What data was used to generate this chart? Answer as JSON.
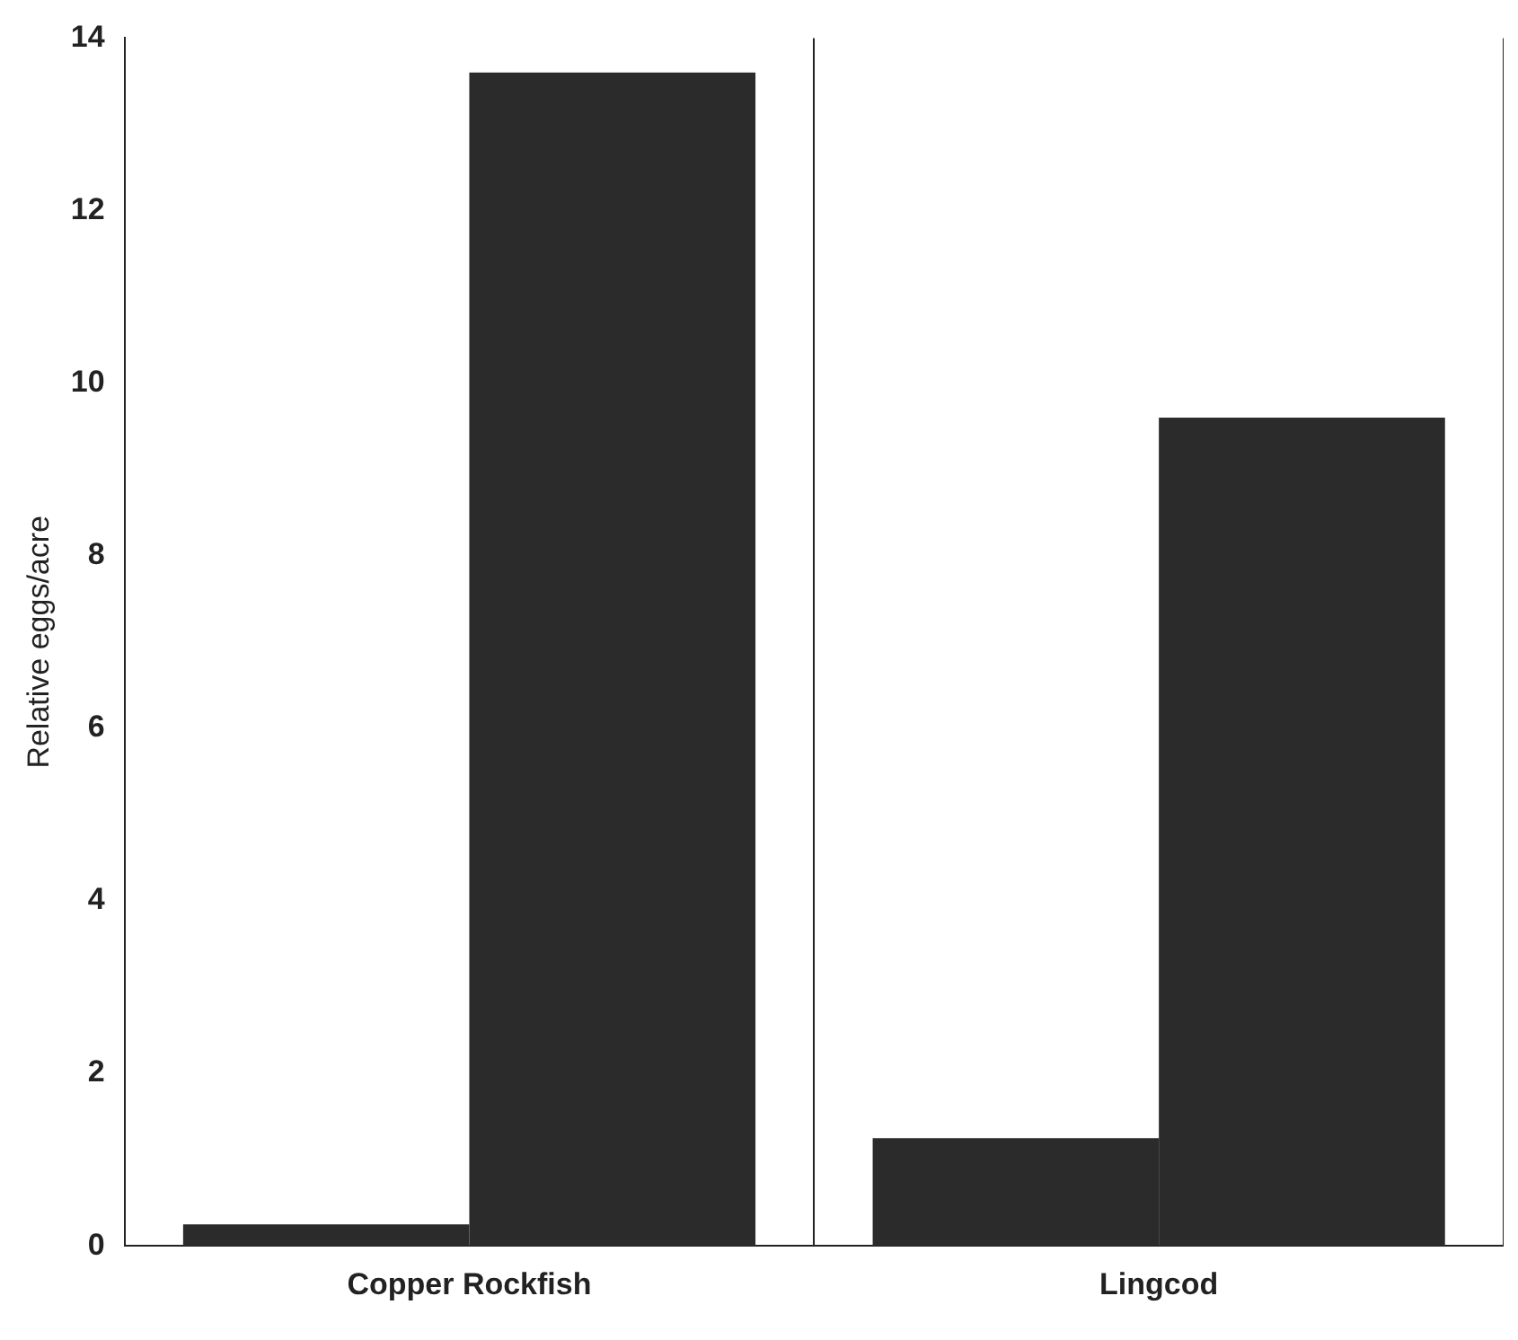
{
  "chart_data": {
    "type": "bar",
    "ylabel": "Relative eggs/acre",
    "categories": [
      "Copper Rockfish",
      "Lingcod"
    ],
    "series": [
      {
        "color": "#2b2b2b",
        "values": [
          0.25,
          1.25
        ]
      },
      {
        "color": "#2b2b2b",
        "values": [
          13.6,
          9.6
        ]
      }
    ],
    "ylim": [
      0,
      14
    ],
    "yticks": [
      0,
      2,
      4,
      6,
      8,
      10,
      12,
      14
    ],
    "grid": "x",
    "legend": false
  }
}
